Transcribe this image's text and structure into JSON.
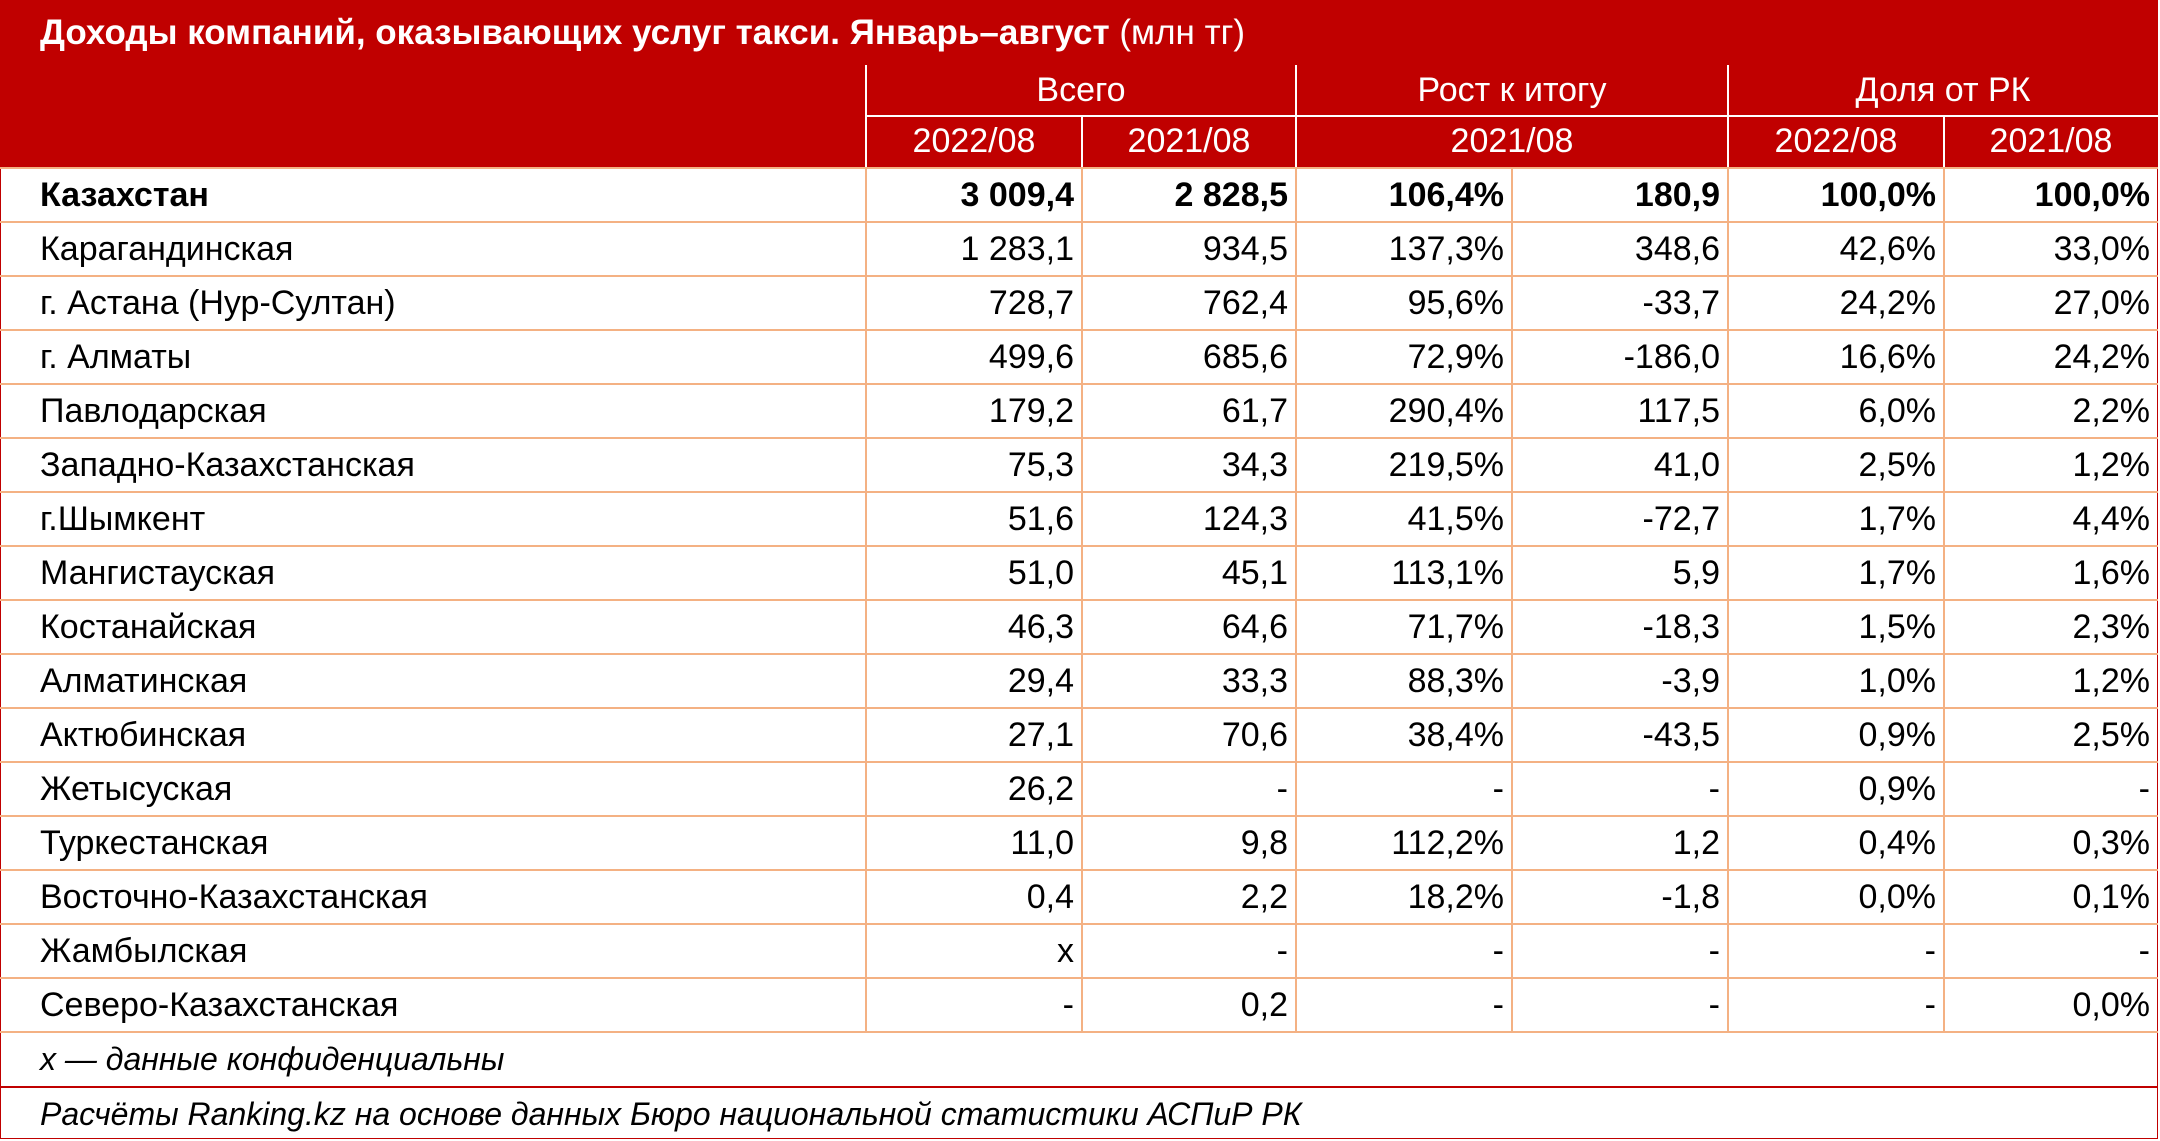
{
  "title": {
    "main": "Доходы компаний, оказывающих услуг такси. Январь–август",
    "unit": "(млн тг)"
  },
  "header": {
    "groups": [
      "Всего",
      "Рост к итогу",
      "Доля от РК"
    ],
    "subs": [
      "2022/08",
      "2021/08",
      "2021/08",
      "2022/08",
      "2021/08"
    ]
  },
  "rows": [
    {
      "region": "Казахстан",
      "total_2022": "3 009,4",
      "total_2021": "2 828,5",
      "growth_pct": "106,4%",
      "growth_abs": "180,9",
      "share_2022": "100,0%",
      "share_2021": "100,0%",
      "bold": true
    },
    {
      "region": "Карагандинская",
      "total_2022": "1 283,1",
      "total_2021": "934,5",
      "growth_pct": "137,3%",
      "growth_abs": "348,6",
      "share_2022": "42,6%",
      "share_2021": "33,0%"
    },
    {
      "region": "г. Астана (Нур-Султан)",
      "total_2022": "728,7",
      "total_2021": "762,4",
      "growth_pct": "95,6%",
      "growth_abs": "-33,7",
      "share_2022": "24,2%",
      "share_2021": "27,0%"
    },
    {
      "region": "г. Алматы",
      "total_2022": "499,6",
      "total_2021": "685,6",
      "growth_pct": "72,9%",
      "growth_abs": "-186,0",
      "share_2022": "16,6%",
      "share_2021": "24,2%"
    },
    {
      "region": "Павлодарская",
      "total_2022": "179,2",
      "total_2021": "61,7",
      "growth_pct": "290,4%",
      "growth_abs": "117,5",
      "share_2022": "6,0%",
      "share_2021": "2,2%"
    },
    {
      "region": "Западно-Казахстанская",
      "total_2022": "75,3",
      "total_2021": "34,3",
      "growth_pct": "219,5%",
      "growth_abs": "41,0",
      "share_2022": "2,5%",
      "share_2021": "1,2%"
    },
    {
      "region": "г.Шымкент",
      "total_2022": "51,6",
      "total_2021": "124,3",
      "growth_pct": "41,5%",
      "growth_abs": "-72,7",
      "share_2022": "1,7%",
      "share_2021": "4,4%"
    },
    {
      "region": "Мангистауская",
      "total_2022": "51,0",
      "total_2021": "45,1",
      "growth_pct": "113,1%",
      "growth_abs": "5,9",
      "share_2022": "1,7%",
      "share_2021": "1,6%"
    },
    {
      "region": "Костанайская",
      "total_2022": "46,3",
      "total_2021": "64,6",
      "growth_pct": "71,7%",
      "growth_abs": "-18,3",
      "share_2022": "1,5%",
      "share_2021": "2,3%"
    },
    {
      "region": "Алматинская",
      "total_2022": "29,4",
      "total_2021": "33,3",
      "growth_pct": "88,3%",
      "growth_abs": "-3,9",
      "share_2022": "1,0%",
      "share_2021": "1,2%"
    },
    {
      "region": "Актюбинская",
      "total_2022": "27,1",
      "total_2021": "70,6",
      "growth_pct": "38,4%",
      "growth_abs": "-43,5",
      "share_2022": "0,9%",
      "share_2021": "2,5%"
    },
    {
      "region": "Жетысуская",
      "total_2022": "26,2",
      "total_2021": "-",
      "growth_pct": "-",
      "growth_abs": "-",
      "share_2022": "0,9%",
      "share_2021": "-"
    },
    {
      "region": "Туркестанская",
      "total_2022": "11,0",
      "total_2021": "9,8",
      "growth_pct": "112,2%",
      "growth_abs": "1,2",
      "share_2022": "0,4%",
      "share_2021": "0,3%"
    },
    {
      "region": "Восточно-Казахстанская",
      "total_2022": "0,4",
      "total_2021": "2,2",
      "growth_pct": "18,2%",
      "growth_abs": "-1,8",
      "share_2022": "0,0%",
      "share_2021": "0,1%"
    },
    {
      "region": "Жамбылская",
      "total_2022": "x",
      "total_2021": "-",
      "growth_pct": "-",
      "growth_abs": "-",
      "share_2022": "-",
      "share_2021": "-"
    },
    {
      "region": "Северо-Казахстанская",
      "total_2022": "-",
      "total_2021": "0,2",
      "growth_pct": "-",
      "growth_abs": "-",
      "share_2022": "-",
      "share_2021": "0,0%"
    }
  ],
  "notes": {
    "confidential": "х — данные конфиденциальны",
    "source": "Расчёты Ranking.kz на основе данных Бюро национальной статистики АСПиР РК"
  },
  "colors": {
    "header_bg": "#c00000",
    "grid": "#f4b183",
    "text": "#000000"
  }
}
